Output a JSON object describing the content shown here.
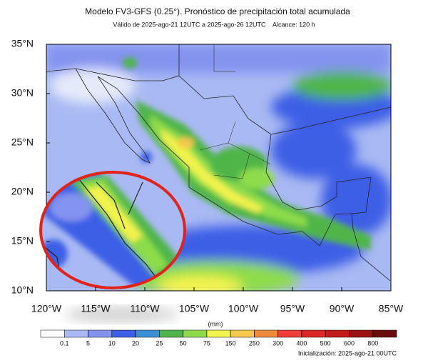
{
  "chart_data": {
    "type": "map",
    "title": "Modelo FV3-GFS (0.25°). Pronóstico de precipitación total acumulada",
    "subtitle": "Válido de 2025-ago-21 12UTC a 2025-ago-26 12UTC    Alcance: 120 h",
    "xlim": [
      -120,
      -85
    ],
    "ylim": [
      10,
      35
    ],
    "xticks": [
      {
        "value": -120,
        "label": "120°W"
      },
      {
        "value": -115,
        "label": "115°W"
      },
      {
        "value": -110,
        "label": "110°W"
      },
      {
        "value": -105,
        "label": "105°W"
      },
      {
        "value": -100,
        "label": "100°W"
      },
      {
        "value": -95,
        "label": "95°W"
      },
      {
        "value": -90,
        "label": "90°W"
      },
      {
        "value": -85,
        "label": "85°W"
      }
    ],
    "yticks": [
      {
        "value": 10,
        "label": "10°N"
      },
      {
        "value": 15,
        "label": "15°N"
      },
      {
        "value": 20,
        "label": "20°N"
      },
      {
        "value": 25,
        "label": "25°N"
      },
      {
        "value": 30,
        "label": "30°N"
      },
      {
        "value": 35,
        "label": "35°N"
      }
    ],
    "colorbar": {
      "label": "(mm)",
      "levels": [
        0.1,
        5,
        10,
        20,
        25,
        50,
        75,
        150,
        250,
        300,
        400,
        500,
        600,
        800
      ],
      "colors": [
        "#ffffff",
        "#a9b9f3",
        "#8393ef",
        "#3d5fe6",
        "#3a8fd9",
        "#4fb548",
        "#8edc4c",
        "#f3f34e",
        "#f4c84a",
        "#ee8a3b",
        "#ee3d3a",
        "#df2626",
        "#c41a1a",
        "#9c1212",
        "#6a0d0d"
      ]
    }
  },
  "footer": "Inicialización: 2025-ago-21 00UTC"
}
